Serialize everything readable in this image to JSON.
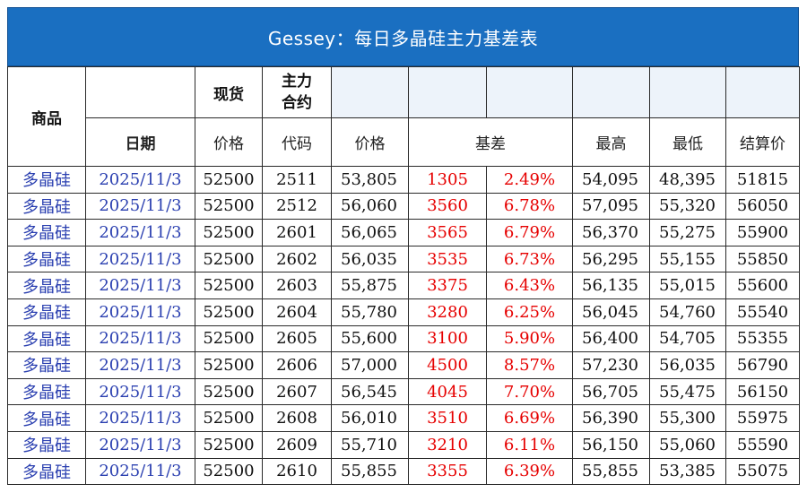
{
  "title": "Gessey：每日多晶硅主力基差表",
  "header_top": {
    "goods": "商品",
    "spot": "现货",
    "main_contract": "主力\n合约"
  },
  "header_sub": {
    "date": "日期",
    "price": "价格",
    "code": "代码",
    "contract_price": "价格",
    "basis": "基差",
    "high": "最高",
    "low": "最低",
    "settle": "结算价"
  },
  "rows": [
    {
      "goods": "多晶硅",
      "date": "2025/11/3",
      "spot": "52500",
      "code": "2511",
      "price": "53,805",
      "basis": "1305",
      "basis_pct": "2.49%",
      "high": "54,095",
      "low": "48,395",
      "settle": "51815"
    },
    {
      "goods": "多晶硅",
      "date": "2025/11/3",
      "spot": "52500",
      "code": "2512",
      "price": "56,060",
      "basis": "3560",
      "basis_pct": "6.78%",
      "high": "57,095",
      "low": "55,320",
      "settle": "56050"
    },
    {
      "goods": "多晶硅",
      "date": "2025/11/3",
      "spot": "52500",
      "code": "2601",
      "price": "56,065",
      "basis": "3565",
      "basis_pct": "6.79%",
      "high": "56,370",
      "low": "55,275",
      "settle": "55900"
    },
    {
      "goods": "多晶硅",
      "date": "2025/11/3",
      "spot": "52500",
      "code": "2602",
      "price": "56,035",
      "basis": "3535",
      "basis_pct": "6.73%",
      "high": "56,295",
      "low": "55,155",
      "settle": "55850"
    },
    {
      "goods": "多晶硅",
      "date": "2025/11/3",
      "spot": "52500",
      "code": "2603",
      "price": "55,875",
      "basis": "3375",
      "basis_pct": "6.43%",
      "high": "56,135",
      "low": "55,015",
      "settle": "55600"
    },
    {
      "goods": "多晶硅",
      "date": "2025/11/3",
      "spot": "52500",
      "code": "2604",
      "price": "55,780",
      "basis": "3280",
      "basis_pct": "6.25%",
      "high": "56,045",
      "low": "54,760",
      "settle": "55540"
    },
    {
      "goods": "多晶硅",
      "date": "2025/11/3",
      "spot": "52500",
      "code": "2605",
      "price": "55,600",
      "basis": "3100",
      "basis_pct": "5.90%",
      "high": "56,400",
      "low": "54,705",
      "settle": "55355"
    },
    {
      "goods": "多晶硅",
      "date": "2025/11/3",
      "spot": "52500",
      "code": "2606",
      "price": "57,000",
      "basis": "4500",
      "basis_pct": "8.57%",
      "high": "57,230",
      "low": "56,035",
      "settle": "56790"
    },
    {
      "goods": "多晶硅",
      "date": "2025/11/3",
      "spot": "52500",
      "code": "2607",
      "price": "56,545",
      "basis": "4045",
      "basis_pct": "7.70%",
      "high": "56,705",
      "low": "55,475",
      "settle": "56150"
    },
    {
      "goods": "多晶硅",
      "date": "2025/11/3",
      "spot": "52500",
      "code": "2608",
      "price": "56,010",
      "basis": "3510",
      "basis_pct": "6.69%",
      "high": "56,390",
      "low": "55,300",
      "settle": "55975"
    },
    {
      "goods": "多晶硅",
      "date": "2025/11/3",
      "spot": "52500",
      "code": "2609",
      "price": "55,710",
      "basis": "3210",
      "basis_pct": "6.11%",
      "high": "56,150",
      "low": "55,060",
      "settle": "55590"
    },
    {
      "goods": "多晶硅",
      "date": "2025/11/3",
      "spot": "52500",
      "code": "2610",
      "price": "55,855",
      "basis": "3355",
      "basis_pct": "6.39%",
      "high": "55,855",
      "low": "53,385",
      "settle": "55075"
    }
  ],
  "colors": {
    "title_bg": "#1a6fc1",
    "goods_text": "#2a3fb0",
    "basis_text": "#e60000",
    "header_fill": "#edf3fa"
  }
}
